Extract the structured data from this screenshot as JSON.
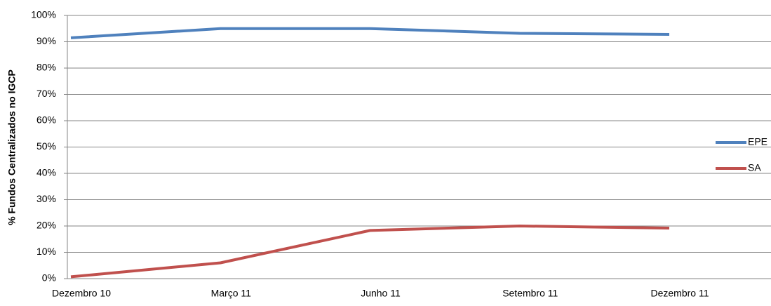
{
  "chart_data": {
    "type": "line",
    "y_label": "% Fundos Centralizados no IGCP",
    "categories": [
      "Dezembro 10",
      "Março 11",
      "Junho 11",
      "Setembro 11",
      "Dezembro 11"
    ],
    "series": [
      {
        "name": "EPE",
        "color": "#4f81bd",
        "values": [
          91.5,
          95,
          95,
          93.2,
          92.8
        ]
      },
      {
        "name": "SA",
        "color": "#c0504d",
        "values": [
          0.7,
          6,
          18.3,
          20,
          19.2
        ]
      }
    ],
    "ylim": [
      0,
      100
    ],
    "yticks": [
      {
        "value": 0,
        "label": "0%"
      },
      {
        "value": 10,
        "label": "10%"
      },
      {
        "value": 20,
        "label": "20%"
      },
      {
        "value": 30,
        "label": "30%"
      },
      {
        "value": 40,
        "label": "40%"
      },
      {
        "value": 50,
        "label": "50%"
      },
      {
        "value": 60,
        "label": "60%"
      },
      {
        "value": 70,
        "label": "70%"
      },
      {
        "value": 80,
        "label": "80%"
      },
      {
        "value": 90,
        "label": "90%"
      },
      {
        "value": 100,
        "label": "100%"
      }
    ],
    "grid": true,
    "legend": "right"
  }
}
